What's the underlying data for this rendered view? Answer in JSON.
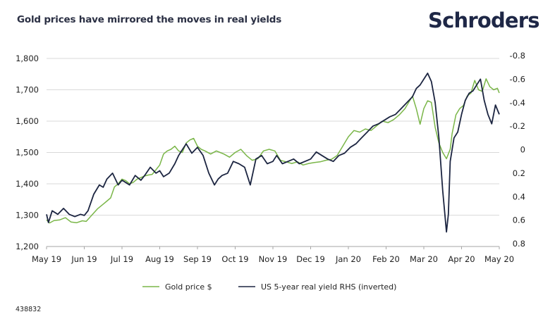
{
  "header": {
    "title": "Gold prices have mirrored the moves in real yields",
    "logo": "Schroders"
  },
  "footer": {
    "code": "438832"
  },
  "colors": {
    "gold": "#7ab648",
    "yield": "#1c2541",
    "grid": "#d9d9d9",
    "axis": "#a6a6a6"
  },
  "chart_data": {
    "type": "line",
    "title": "Gold prices have mirrored the moves in real yields",
    "xlabel": "",
    "ylabel": "",
    "x_ticks": [
      "May 19",
      "Jun 19",
      "Jul 19",
      "Aug 19",
      "Sep 19",
      "Oct 19",
      "Nov 19",
      "Dec 19",
      "Jan 20",
      "Feb 20",
      "Mar 20",
      "Apr 20",
      "May 20"
    ],
    "x_range_months": [
      0,
      12
    ],
    "left_axis": {
      "ylim": [
        1200,
        1800
      ],
      "ticks": [
        "1,200",
        "1,300",
        "1,400",
        "1,500",
        "1,600",
        "1,700",
        "1,800"
      ],
      "tick_values": [
        1200,
        1300,
        1400,
        1500,
        1600,
        1700,
        1800
      ]
    },
    "right_axis": {
      "ylim": [
        0.8,
        -0.8
      ],
      "inverted": true,
      "ticks": [
        "-0.8",
        "-0.6",
        "-0.4",
        "-0.2",
        "0",
        "0.2",
        "0.4",
        "0.6",
        "0.8"
      ],
      "tick_values": [
        -0.8,
        -0.6,
        -0.4,
        -0.2,
        0,
        0.2,
        0.4,
        0.6,
        0.8
      ]
    },
    "grid": true,
    "legend_position": "bottom",
    "series": [
      {
        "name": "Gold price $",
        "axis": "left",
        "color": "#7ab648",
        "x": [
          0,
          0.08,
          0.2,
          0.35,
          0.5,
          0.65,
          0.8,
          0.95,
          1.05,
          1.2,
          1.35,
          1.5,
          1.6,
          1.7,
          1.8,
          1.9,
          2.0,
          2.1,
          2.2,
          2.3,
          2.4,
          2.5,
          2.6,
          2.7,
          2.8,
          2.9,
          3.0,
          3.1,
          3.2,
          3.3,
          3.4,
          3.5,
          3.6,
          3.7,
          3.8,
          3.9,
          4.0,
          4.1,
          4.2,
          4.35,
          4.5,
          4.6,
          4.7,
          4.85,
          5.0,
          5.15,
          5.3,
          5.45,
          5.6,
          5.75,
          5.9,
          6.05,
          6.2,
          6.35,
          6.5,
          6.65,
          6.8,
          6.95,
          7.1,
          7.25,
          7.4,
          7.55,
          7.7,
          7.85,
          8.0,
          8.15,
          8.3,
          8.45,
          8.6,
          8.75,
          8.9,
          9.05,
          9.2,
          9.35,
          9.5,
          9.6,
          9.7,
          9.8,
          9.9,
          10.0,
          10.1,
          10.2,
          10.3,
          10.4,
          10.5,
          10.6,
          10.7,
          10.75,
          10.85,
          10.95,
          11.05,
          11.15,
          11.25,
          11.35,
          11.45,
          11.55,
          11.65,
          11.75,
          11.85,
          11.95,
          12.0
        ],
        "values": [
          1285,
          1275,
          1283,
          1285,
          1292,
          1278,
          1276,
          1282,
          1280,
          1300,
          1320,
          1335,
          1345,
          1355,
          1390,
          1400,
          1415,
          1410,
          1400,
          1405,
          1415,
          1420,
          1425,
          1428,
          1430,
          1445,
          1460,
          1495,
          1505,
          1510,
          1520,
          1505,
          1500,
          1530,
          1540,
          1545,
          1520,
          1510,
          1505,
          1495,
          1505,
          1500,
          1495,
          1485,
          1500,
          1510,
          1490,
          1475,
          1480,
          1505,
          1510,
          1505,
          1475,
          1470,
          1465,
          1470,
          1460,
          1465,
          1468,
          1470,
          1475,
          1478,
          1490,
          1520,
          1550,
          1570,
          1565,
          1575,
          1570,
          1585,
          1600,
          1595,
          1605,
          1620,
          1640,
          1660,
          1680,
          1640,
          1590,
          1640,
          1665,
          1660,
          1580,
          1530,
          1500,
          1480,
          1510,
          1560,
          1620,
          1640,
          1650,
          1680,
          1690,
          1730,
          1700,
          1695,
          1735,
          1710,
          1700,
          1705,
          1690
        ]
      },
      {
        "name": "US 5-year real yield RHS (inverted)",
        "axis": "right",
        "color": "#1c2541",
        "x": [
          0,
          0.05,
          0.15,
          0.3,
          0.45,
          0.6,
          0.75,
          0.9,
          1.0,
          1.1,
          1.25,
          1.4,
          1.5,
          1.6,
          1.75,
          1.9,
          2.0,
          2.1,
          2.2,
          2.35,
          2.5,
          2.6,
          2.75,
          2.9,
          3.0,
          3.1,
          3.25,
          3.4,
          3.5,
          3.6,
          3.7,
          3.85,
          4.0,
          4.15,
          4.3,
          4.45,
          4.55,
          4.65,
          4.8,
          4.95,
          5.1,
          5.25,
          5.4,
          5.55,
          5.7,
          5.85,
          6.0,
          6.1,
          6.25,
          6.4,
          6.55,
          6.7,
          6.85,
          7.0,
          7.15,
          7.3,
          7.45,
          7.6,
          7.75,
          7.9,
          8.05,
          8.2,
          8.35,
          8.5,
          8.65,
          8.8,
          8.95,
          9.1,
          9.25,
          9.4,
          9.55,
          9.7,
          9.8,
          9.9,
          10.0,
          10.1,
          10.2,
          10.3,
          10.4,
          10.5,
          10.6,
          10.65,
          10.7,
          10.8,
          10.9,
          11.0,
          11.1,
          11.2,
          11.3,
          11.4,
          11.5,
          11.6,
          11.7,
          11.8,
          11.9,
          12.0
        ],
        "values": [
          0.55,
          0.62,
          0.52,
          0.55,
          0.5,
          0.55,
          0.57,
          0.55,
          0.56,
          0.52,
          0.38,
          0.3,
          0.32,
          0.25,
          0.2,
          0.3,
          0.26,
          0.28,
          0.3,
          0.22,
          0.26,
          0.22,
          0.15,
          0.2,
          0.18,
          0.23,
          0.2,
          0.12,
          0.05,
          0.0,
          -0.05,
          0.03,
          -0.02,
          0.05,
          0.2,
          0.3,
          0.25,
          0.22,
          0.2,
          0.1,
          0.12,
          0.15,
          0.3,
          0.08,
          0.05,
          0.12,
          0.1,
          0.05,
          0.12,
          0.1,
          0.08,
          0.12,
          0.1,
          0.08,
          0.02,
          0.05,
          0.08,
          0.1,
          0.05,
          0.03,
          -0.02,
          -0.05,
          -0.1,
          -0.15,
          -0.2,
          -0.22,
          -0.25,
          -0.28,
          -0.3,
          -0.35,
          -0.4,
          -0.45,
          -0.52,
          -0.55,
          -0.6,
          -0.65,
          -0.58,
          -0.4,
          -0.1,
          0.35,
          0.7,
          0.55,
          0.1,
          -0.1,
          -0.15,
          -0.3,
          -0.42,
          -0.48,
          -0.5,
          -0.55,
          -0.6,
          -0.42,
          -0.3,
          -0.22,
          -0.38,
          -0.3
        ]
      }
    ]
  },
  "legend": {
    "items": [
      {
        "label": "Gold price $",
        "color": "#7ab648"
      },
      {
        "label": "US 5-year real yield RHS (inverted)",
        "color": "#1c2541"
      }
    ]
  }
}
